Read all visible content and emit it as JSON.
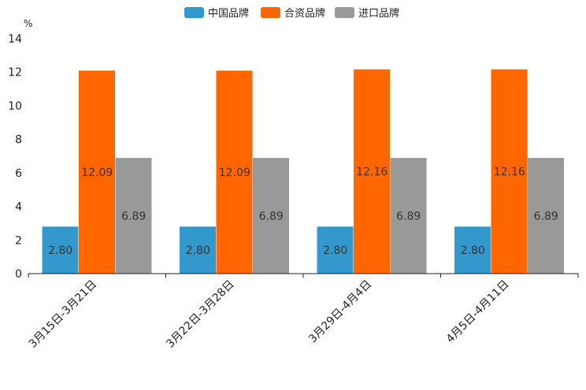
{
  "chart_data": {
    "type": "bar",
    "title": "",
    "unit_label": "%",
    "xlabel": "",
    "ylabel": "",
    "ylim": [
      0,
      14
    ],
    "yticks": [
      0,
      2,
      4,
      6,
      8,
      10,
      12,
      14
    ],
    "grid": false,
    "legend_position": "top-center",
    "categories": [
      "3月15日-3月21日",
      "3月22日-3月28日",
      "3月29日-4月4日",
      "4月5日-4月11日"
    ],
    "series": [
      {
        "name": "中国品牌",
        "color": "#3399cc",
        "values": [
          2.8,
          2.8,
          2.8,
          2.8
        ],
        "labels": [
          "2.80",
          "2.80",
          "2.80",
          "2.80"
        ]
      },
      {
        "name": "合资品牌",
        "color": "#ff6600",
        "values": [
          12.09,
          12.09,
          12.16,
          12.16
        ],
        "labels": [
          "12.09",
          "12.09",
          "12.16",
          "12.16"
        ]
      },
      {
        "name": "进口品牌",
        "color": "#999999",
        "values": [
          6.89,
          6.89,
          6.89,
          6.89
        ],
        "labels": [
          "6.89",
          "6.89",
          "6.89",
          "6.89"
        ]
      }
    ]
  }
}
